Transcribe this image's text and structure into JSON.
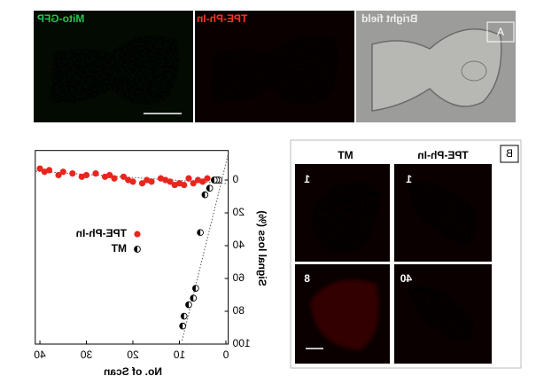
{
  "panel_a": {
    "label": "A",
    "images": [
      {
        "label": "Mito-GFP"
      },
      {
        "label": "TPE-Ph-In"
      },
      {
        "label": "Bright field"
      }
    ]
  },
  "chart_data": {
    "type": "scatter",
    "xlabel": "No. of Scan",
    "ylabel": "Signal loss (%)",
    "xlim": [
      -0.5,
      41
    ],
    "xticks": [
      0,
      10,
      20,
      30,
      40
    ],
    "ylim": [
      -18,
      100
    ],
    "yticks": [
      0,
      20,
      40,
      60,
      80,
      100
    ],
    "y_inverted": true,
    "series": [
      {
        "name": "TPE-Ph-In",
        "color": "#e8261e",
        "marker": "dot",
        "x": [
          4,
          5,
          6,
          7,
          8,
          9,
          10,
          11,
          12,
          13,
          14,
          16,
          17,
          18,
          20,
          21,
          22,
          24,
          25,
          26,
          28,
          30,
          31,
          33,
          35,
          36,
          38,
          39,
          40
        ],
        "values": [
          -1,
          1,
          0,
          2,
          -1,
          3,
          2,
          3,
          1,
          0,
          -1,
          1,
          0,
          2,
          1,
          0,
          -2,
          -1,
          -3,
          -2,
          -4,
          -3,
          -2,
          -4,
          -5,
          -3,
          -6,
          -5,
          -7
        ]
      },
      {
        "name": "MT",
        "color": "#000000",
        "marker": "half",
        "x": [
          1.5,
          2,
          2.5,
          3.5,
          4.5,
          5.5,
          6.5,
          7,
          8,
          9,
          9.3
        ],
        "values": [
          0,
          0,
          0,
          5,
          9,
          32,
          66,
          72,
          76,
          83,
          89
        ]
      }
    ]
  },
  "panel_b": {
    "label": "B",
    "columns": [
      "MT",
      "TPE-Ph-In"
    ],
    "cells": [
      [
        "1",
        "1"
      ],
      [
        "8",
        "40"
      ]
    ]
  }
}
